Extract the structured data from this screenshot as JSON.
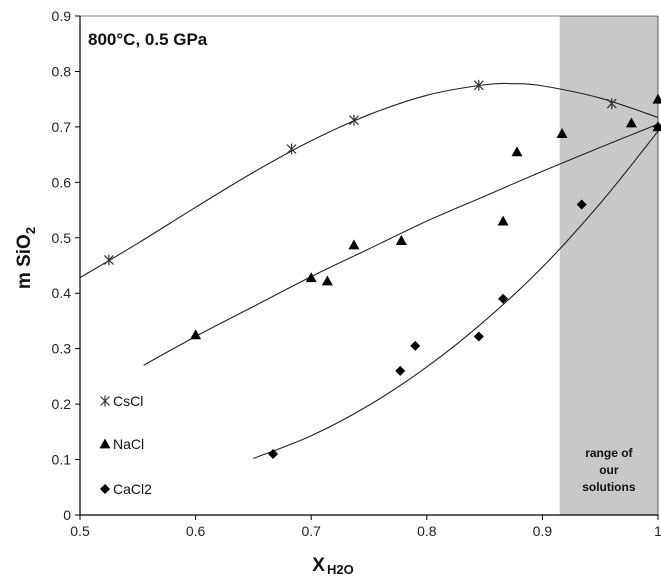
{
  "chart_data": {
    "type": "scatter",
    "annotation": "800°C, 0.5 GPa",
    "xlabel_main": "X",
    "xlabel_sub": "H2O",
    "ylabel_main": "m SiO",
    "ylabel_sub": "2",
    "xlim": [
      0.5,
      1.0
    ],
    "ylim": [
      0,
      0.9
    ],
    "x_ticks": [
      "0.5",
      "0.6",
      "0.7",
      "0.8",
      "0.9",
      "1"
    ],
    "y_ticks": [
      "0",
      "0.1",
      "0.2",
      "0.3",
      "0.4",
      "0.5",
      "0.6",
      "0.7",
      "0.8",
      "0.9"
    ],
    "grid": false,
    "legend_position": "bottom-left",
    "shaded_region": {
      "x_range": [
        0.915,
        1.0
      ],
      "label_lines": [
        "range of",
        "our",
        "solutions"
      ],
      "color": "#c8c8c8"
    },
    "series": [
      {
        "name": "CsCl",
        "marker": "asterisk",
        "points": [
          [
            0.525,
            0.46
          ],
          [
            0.683,
            0.66
          ],
          [
            0.737,
            0.712
          ],
          [
            0.845,
            0.775
          ],
          [
            0.96,
            0.742
          ]
        ],
        "fit": [
          [
            0.5,
            0.428
          ],
          [
            0.55,
            0.49
          ],
          [
            0.6,
            0.555
          ],
          [
            0.65,
            0.618
          ],
          [
            0.7,
            0.675
          ],
          [
            0.75,
            0.722
          ],
          [
            0.8,
            0.757
          ],
          [
            0.85,
            0.776
          ],
          [
            0.875,
            0.778
          ],
          [
            0.9,
            0.774
          ],
          [
            0.95,
            0.752
          ],
          [
            1.0,
            0.717
          ]
        ]
      },
      {
        "name": "NaCl",
        "marker": "triangle",
        "points": [
          [
            0.6,
            0.325
          ],
          [
            0.7,
            0.428
          ],
          [
            0.714,
            0.422
          ],
          [
            0.737,
            0.487
          ],
          [
            0.778,
            0.495
          ],
          [
            0.866,
            0.53
          ],
          [
            0.878,
            0.655
          ],
          [
            0.917,
            0.688
          ],
          [
            0.977,
            0.707
          ],
          [
            1.0,
            0.75
          ],
          [
            1.0,
            0.7
          ]
        ],
        "fit": [
          [
            0.555,
            0.27
          ],
          [
            0.6,
            0.322
          ],
          [
            0.65,
            0.376
          ],
          [
            0.7,
            0.43
          ],
          [
            0.75,
            0.48
          ],
          [
            0.8,
            0.53
          ],
          [
            0.85,
            0.575
          ],
          [
            0.9,
            0.62
          ],
          [
            0.95,
            0.663
          ],
          [
            1.0,
            0.705
          ]
        ]
      },
      {
        "name": "CaCl2",
        "marker": "diamond",
        "points": [
          [
            0.667,
            0.11
          ],
          [
            0.777,
            0.26
          ],
          [
            0.79,
            0.305
          ],
          [
            0.845,
            0.322
          ],
          [
            0.866,
            0.39
          ],
          [
            0.934,
            0.56
          ],
          [
            1.0,
            0.7
          ]
        ],
        "fit": [
          [
            0.65,
            0.102
          ],
          [
            0.7,
            0.143
          ],
          [
            0.75,
            0.198
          ],
          [
            0.8,
            0.267
          ],
          [
            0.85,
            0.35
          ],
          [
            0.9,
            0.447
          ],
          [
            0.95,
            0.562
          ],
          [
            1.0,
            0.692
          ]
        ]
      }
    ]
  }
}
